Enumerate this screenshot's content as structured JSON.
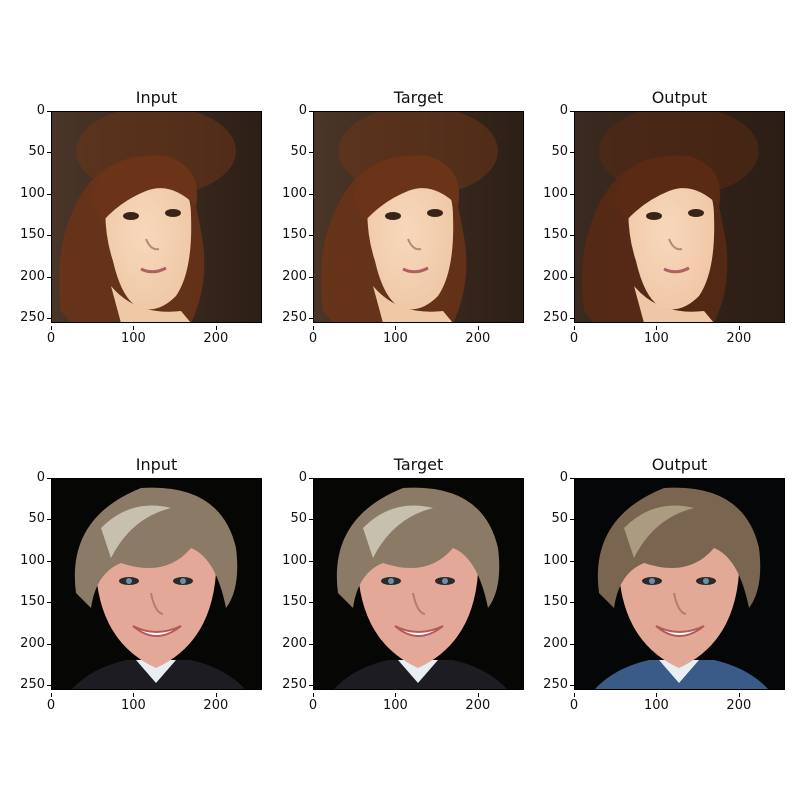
{
  "panels": [
    {
      "title": "Input",
      "scene": "woman"
    },
    {
      "title": "Target",
      "scene": "woman"
    },
    {
      "title": "Output",
      "scene": "woman_output"
    },
    {
      "title": "Input",
      "scene": "man"
    },
    {
      "title": "Target",
      "scene": "man"
    },
    {
      "title": "Output",
      "scene": "man_output"
    }
  ],
  "axes": {
    "y_ticks": [
      "0",
      "50",
      "100",
      "150",
      "200",
      "250"
    ],
    "x_ticks": [
      "0",
      "100",
      "200"
    ],
    "x_range": [
      0,
      256
    ],
    "y_range": [
      0,
      256
    ]
  }
}
